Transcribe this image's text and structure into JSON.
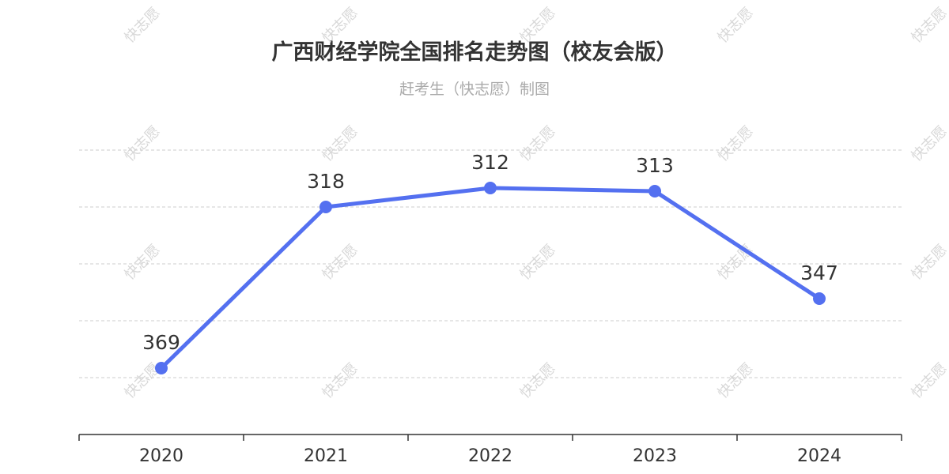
{
  "title": "广西财经学院全国排名走势图（校友会版）",
  "subtitle": "赶考生（快志愿）制图",
  "watermark": "快志愿",
  "colors": {
    "line": "#5470f0",
    "grid": "#cccccc",
    "axis": "#333333",
    "label": "#333333"
  },
  "chart_data": {
    "type": "line",
    "title": "广西财经学院全国排名走势图（校友会版）",
    "subtitle": "赶考生（快志愿）制图",
    "categories": [
      "2020",
      "2021",
      "2022",
      "2023",
      "2024"
    ],
    "series": [
      {
        "values": [
          369,
          318,
          312,
          313,
          347
        ]
      }
    ],
    "y_inverted": true,
    "ylim": [
      300,
      390
    ],
    "grid": true,
    "legend": "none",
    "data_labels": true
  }
}
